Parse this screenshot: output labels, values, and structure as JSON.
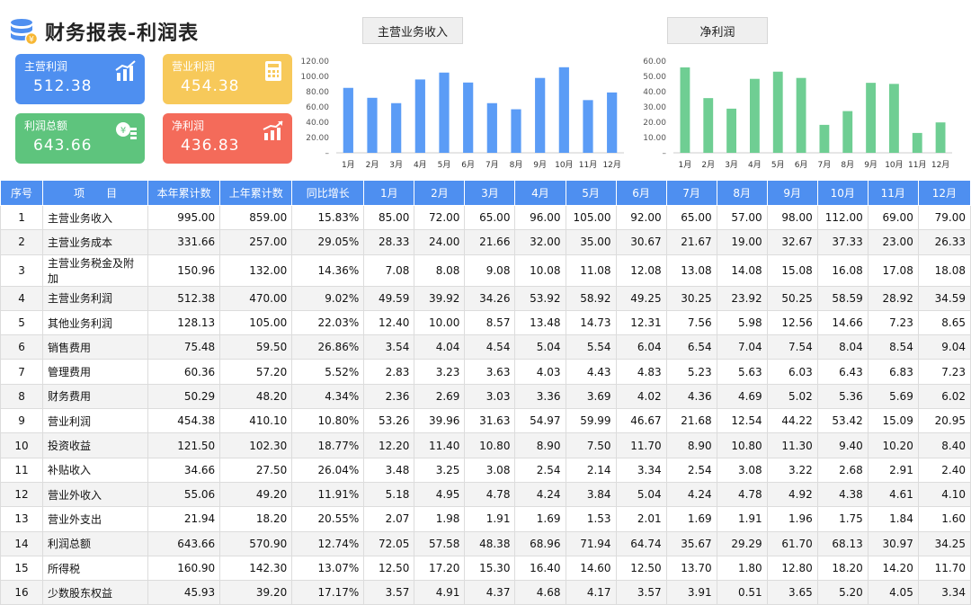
{
  "title": "财务报表-利润表",
  "cards": [
    {
      "label": "主营利润",
      "value": "512.38",
      "color": "#4e8ff0",
      "icon": "bar-chart-icon"
    },
    {
      "label": "营业利润",
      "value": "454.38",
      "color": "#f7c95a",
      "icon": "calculator-icon"
    },
    {
      "label": "利润总额",
      "value": "643.66",
      "color": "#5ec47d",
      "icon": "coins-icon"
    },
    {
      "label": "净利润",
      "value": "436.83",
      "color": "#f46b5a",
      "icon": "growth-chart-icon"
    }
  ],
  "buttons": {
    "revenue": "主营业务收入",
    "net": "净利润"
  },
  "chart_data": [
    {
      "type": "bar",
      "series_label": "主营业务收入",
      "color": "#5b9cf6",
      "categories": [
        "1月",
        "2月",
        "3月",
        "4月",
        "5月",
        "6月",
        "7月",
        "8月",
        "9月",
        "10月",
        "11月",
        "12月"
      ],
      "values": [
        85,
        72,
        65,
        96,
        105,
        92,
        65,
        57,
        98,
        112,
        69,
        79
      ],
      "ylim": [
        0,
        120
      ],
      "yticks": [
        "–",
        "20.00",
        "40.00",
        "60.00",
        "80.00",
        "100.00",
        "120.00"
      ]
    },
    {
      "type": "bar",
      "series_label": "净利润",
      "color": "#6fce93",
      "categories": [
        "1月",
        "2月",
        "3月",
        "4月",
        "5月",
        "6月",
        "7月",
        "8月",
        "9月",
        "10月",
        "11月",
        "12月"
      ],
      "values": [
        55.9,
        35.8,
        28.9,
        48.4,
        53.1,
        49.0,
        18.3,
        27.3,
        45.8,
        45.1,
        13.0,
        19.9
      ],
      "ylim": [
        0,
        60
      ],
      "yticks": [
        "–",
        "10.00",
        "20.00",
        "30.00",
        "40.00",
        "50.00",
        "60.00"
      ]
    }
  ],
  "table": {
    "headers": [
      "序号",
      "项　　目",
      "本年累计数",
      "上年累计数",
      "同比增长",
      "1月",
      "2月",
      "3月",
      "4月",
      "5月",
      "6月",
      "7月",
      "8月",
      "9月",
      "10月",
      "11月",
      "12月"
    ],
    "rows": [
      [
        "1",
        "主营业务收入",
        "995.00",
        "859.00",
        "15.83%",
        "85.00",
        "72.00",
        "65.00",
        "96.00",
        "105.00",
        "92.00",
        "65.00",
        "57.00",
        "98.00",
        "112.00",
        "69.00",
        "79.00"
      ],
      [
        "2",
        "主营业务成本",
        "331.66",
        "257.00",
        "29.05%",
        "28.33",
        "24.00",
        "21.66",
        "32.00",
        "35.00",
        "30.67",
        "21.67",
        "19.00",
        "32.67",
        "37.33",
        "23.00",
        "26.33"
      ],
      [
        "3",
        "主营业务税金及附加",
        "150.96",
        "132.00",
        "14.36%",
        "7.08",
        "8.08",
        "9.08",
        "10.08",
        "11.08",
        "12.08",
        "13.08",
        "14.08",
        "15.08",
        "16.08",
        "17.08",
        "18.08"
      ],
      [
        "4",
        "主营业务利润",
        "512.38",
        "470.00",
        "9.02%",
        "49.59",
        "39.92",
        "34.26",
        "53.92",
        "58.92",
        "49.25",
        "30.25",
        "23.92",
        "50.25",
        "58.59",
        "28.92",
        "34.59"
      ],
      [
        "5",
        "其他业务利润",
        "128.13",
        "105.00",
        "22.03%",
        "12.40",
        "10.00",
        "8.57",
        "13.48",
        "14.73",
        "12.31",
        "7.56",
        "5.98",
        "12.56",
        "14.66",
        "7.23",
        "8.65"
      ],
      [
        "6",
        "销售费用",
        "75.48",
        "59.50",
        "26.86%",
        "3.54",
        "4.04",
        "4.54",
        "5.04",
        "5.54",
        "6.04",
        "6.54",
        "7.04",
        "7.54",
        "8.04",
        "8.54",
        "9.04"
      ],
      [
        "7",
        "管理费用",
        "60.36",
        "57.20",
        "5.52%",
        "2.83",
        "3.23",
        "3.63",
        "4.03",
        "4.43",
        "4.83",
        "5.23",
        "5.63",
        "6.03",
        "6.43",
        "6.83",
        "7.23"
      ],
      [
        "8",
        "财务费用",
        "50.29",
        "48.20",
        "4.34%",
        "2.36",
        "2.69",
        "3.03",
        "3.36",
        "3.69",
        "4.02",
        "4.36",
        "4.69",
        "5.02",
        "5.36",
        "5.69",
        "6.02"
      ],
      [
        "9",
        "营业利润",
        "454.38",
        "410.10",
        "10.80%",
        "53.26",
        "39.96",
        "31.63",
        "54.97",
        "59.99",
        "46.67",
        "21.68",
        "12.54",
        "44.22",
        "53.42",
        "15.09",
        "20.95"
      ],
      [
        "10",
        "投资收益",
        "121.50",
        "102.30",
        "18.77%",
        "12.20",
        "11.40",
        "10.80",
        "8.90",
        "7.50",
        "11.70",
        "8.90",
        "10.80",
        "11.30",
        "9.40",
        "10.20",
        "8.40"
      ],
      [
        "11",
        "补贴收入",
        "34.66",
        "27.50",
        "26.04%",
        "3.48",
        "3.25",
        "3.08",
        "2.54",
        "2.14",
        "3.34",
        "2.54",
        "3.08",
        "3.22",
        "2.68",
        "2.91",
        "2.40"
      ],
      [
        "12",
        "营业外收入",
        "55.06",
        "49.20",
        "11.91%",
        "5.18",
        "4.95",
        "4.78",
        "4.24",
        "3.84",
        "5.04",
        "4.24",
        "4.78",
        "4.92",
        "4.38",
        "4.61",
        "4.10"
      ],
      [
        "13",
        "营业外支出",
        "21.94",
        "18.20",
        "20.55%",
        "2.07",
        "1.98",
        "1.91",
        "1.69",
        "1.53",
        "2.01",
        "1.69",
        "1.91",
        "1.96",
        "1.75",
        "1.84",
        "1.60"
      ],
      [
        "14",
        "利润总额",
        "643.66",
        "570.90",
        "12.74%",
        "72.05",
        "57.58",
        "48.38",
        "68.96",
        "71.94",
        "64.74",
        "35.67",
        "29.29",
        "61.70",
        "68.13",
        "30.97",
        "34.25"
      ],
      [
        "15",
        "所得税",
        "160.90",
        "142.30",
        "13.07%",
        "12.50",
        "17.20",
        "15.30",
        "16.40",
        "14.60",
        "12.50",
        "13.70",
        "1.80",
        "12.80",
        "18.20",
        "14.20",
        "11.70"
      ],
      [
        "16",
        "少数股东权益",
        "45.93",
        "39.20",
        "17.17%",
        "3.57",
        "4.91",
        "4.37",
        "4.68",
        "4.17",
        "3.57",
        "3.91",
        "0.51",
        "3.65",
        "5.20",
        "4.05",
        "3.34"
      ]
    ]
  }
}
